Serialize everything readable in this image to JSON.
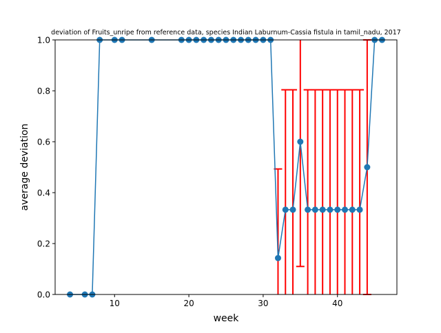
{
  "chart_data": {
    "type": "line",
    "title": "deviation of Fruits_unripe from reference data, species Indian Laburnum-Cassia fistula in tamil_nadu, 2017",
    "xlabel": "week",
    "ylabel": "average deviation",
    "xlim": [
      2,
      48
    ],
    "ylim": [
      0,
      1
    ],
    "xticks": [
      10,
      20,
      30,
      40
    ],
    "yticks": [
      0.0,
      0.2,
      0.4,
      0.6,
      0.8,
      1.0
    ],
    "xtick_labels": [
      "10",
      "20",
      "30",
      "40"
    ],
    "ytick_labels": [
      "0.0",
      "0.2",
      "0.4",
      "0.6",
      "0.8",
      "1.0"
    ],
    "grid": false,
    "colors": {
      "line": "#1f77b4",
      "errorbar": "#ff0000"
    },
    "series": [
      {
        "points": [
          {
            "x": 4,
            "y": 0.0
          },
          {
            "x": 6,
            "y": 0.0
          },
          {
            "x": 7,
            "y": 0.0
          },
          {
            "x": 8,
            "y": 1.0
          },
          {
            "x": 10,
            "y": 1.0
          },
          {
            "x": 11,
            "y": 1.0
          },
          {
            "x": 15,
            "y": 1.0
          },
          {
            "x": 19,
            "y": 1.0
          },
          {
            "x": 20,
            "y": 1.0
          },
          {
            "x": 21,
            "y": 1.0
          },
          {
            "x": 22,
            "y": 1.0
          },
          {
            "x": 23,
            "y": 1.0
          },
          {
            "x": 24,
            "y": 1.0
          },
          {
            "x": 25,
            "y": 1.0
          },
          {
            "x": 26,
            "y": 1.0
          },
          {
            "x": 27,
            "y": 1.0
          },
          {
            "x": 28,
            "y": 1.0
          },
          {
            "x": 29,
            "y": 1.0
          },
          {
            "x": 30,
            "y": 1.0
          },
          {
            "x": 31,
            "y": 1.0
          },
          {
            "x": 32,
            "y": 0.143,
            "err": 0.35
          },
          {
            "x": 33,
            "y": 0.333,
            "err": 0.471
          },
          {
            "x": 34,
            "y": 0.333,
            "err": 0.471
          },
          {
            "x": 35,
            "y": 0.6,
            "err": 0.49
          },
          {
            "x": 36,
            "y": 0.333,
            "err": 0.471
          },
          {
            "x": 37,
            "y": 0.333,
            "err": 0.471
          },
          {
            "x": 38,
            "y": 0.333,
            "err": 0.471
          },
          {
            "x": 39,
            "y": 0.333,
            "err": 0.471
          },
          {
            "x": 40,
            "y": 0.333,
            "err": 0.471
          },
          {
            "x": 41,
            "y": 0.333,
            "err": 0.471
          },
          {
            "x": 42,
            "y": 0.333,
            "err": 0.471
          },
          {
            "x": 43,
            "y": 0.333,
            "err": 0.471
          },
          {
            "x": 44,
            "y": 0.5,
            "err": 0.5
          },
          {
            "x": 45,
            "y": 1.0
          },
          {
            "x": 46,
            "y": 1.0
          }
        ]
      }
    ]
  }
}
